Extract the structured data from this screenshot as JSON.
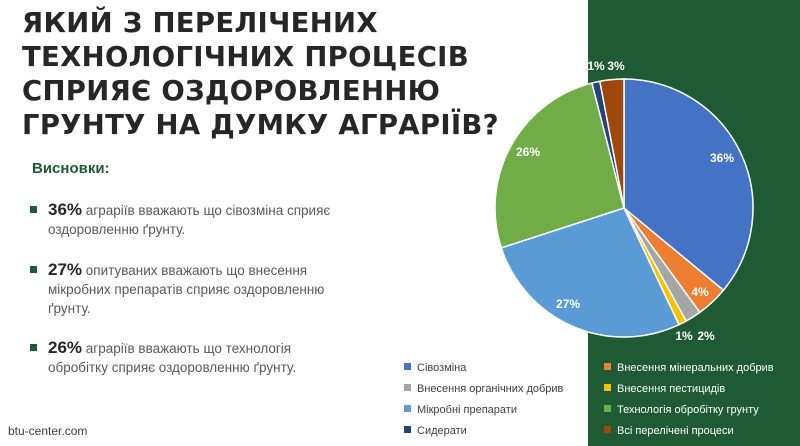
{
  "title": "ЯКИЙ З ПЕРЕЛІЧЕНИХ ТЕХНОЛОГІЧНИХ ПРОЦЕСІВ СПРИЯЄ ОЗДОРОВЛЕННЮ ГРУНТУ НА ДУМКУ АГРАРІЇВ?",
  "conclusions": {
    "label": "Висновки:",
    "items": [
      {
        "pct": "36%",
        "text": " аграріїв вважають що сівозміна сприяє оздоровленню ґрунту."
      },
      {
        "pct": "27%",
        "text": "  опитуваних вважають що внесення мікробних препаратів сприяє оздоровленню ґрунту."
      },
      {
        "pct": "26%",
        "text": " аграріїв вважають що технологія обробітку сприяє оздоровленню ґрунту."
      }
    ]
  },
  "footer": "btu-center.com",
  "colors": {
    "panel": "#1e5a34",
    "accent": "#1e5a34"
  },
  "chart_data": {
    "type": "pie",
    "title": "",
    "categories": [
      "Сівозміна",
      "Внесення мінеральних добрив",
      "Внесення органічних добрив",
      "Внесення пестицидів",
      "Мікробні препарати",
      "Технологія обробітку грунту",
      "Сидерати",
      "Всі перелічені процеси"
    ],
    "values": [
      36,
      4,
      2,
      1,
      27,
      26,
      1,
      3
    ],
    "labels": [
      "36%",
      "4%",
      "2%",
      "1%",
      "27%",
      "26%",
      "1%",
      "3%"
    ],
    "colors": [
      "#4472c4",
      "#ed7d31",
      "#a5a5a5",
      "#ffc000",
      "#5b9bd5",
      "#70ad47",
      "#264478",
      "#9e480e"
    ],
    "legend": "bottom"
  }
}
